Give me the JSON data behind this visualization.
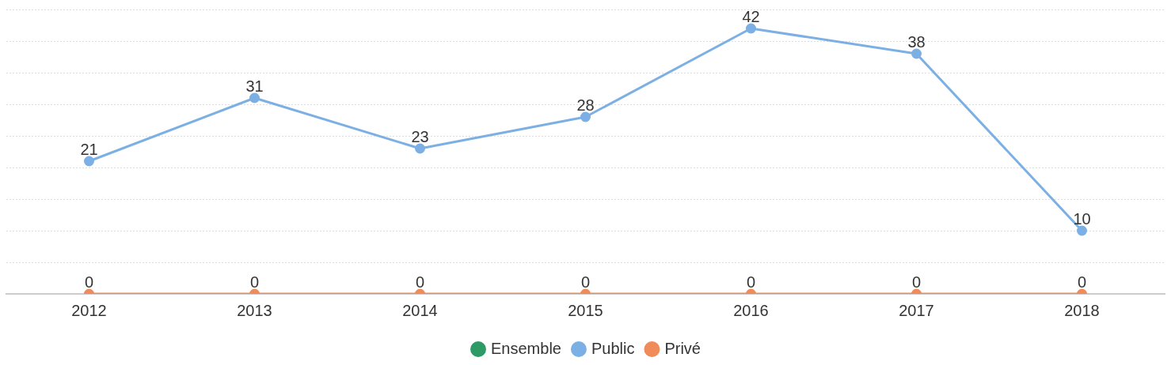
{
  "chart_data": {
    "type": "line",
    "categories": [
      "2012",
      "2013",
      "2014",
      "2015",
      "2016",
      "2017",
      "2018"
    ],
    "series": [
      {
        "name": "Ensemble",
        "color": "#2e9a66",
        "values": [
          null,
          null,
          null,
          null,
          null,
          null,
          null
        ]
      },
      {
        "name": "Public",
        "color": "#7cb0e4",
        "values": [
          21,
          31,
          23,
          28,
          42,
          38,
          10
        ]
      },
      {
        "name": "Privé",
        "color": "#f08c5a",
        "values": [
          0,
          0,
          0,
          0,
          0,
          0,
          0
        ]
      }
    ],
    "ylim": [
      0,
      45
    ],
    "yticks": [
      {
        "value": 0,
        "label": null
      },
      {
        "value": 5,
        "label": null
      },
      {
        "value": 10,
        "label": null
      },
      {
        "value": 15,
        "label": null
      },
      {
        "value": 20,
        "label": null
      },
      {
        "value": 25,
        "label": null
      },
      {
        "value": 30,
        "label": null
      },
      {
        "value": 35,
        "label": null
      },
      {
        "value": 40,
        "label": null
      },
      {
        "value": 45,
        "label": null
      }
    ],
    "grid": "y",
    "legend": "bottom",
    "tick_labels": "x",
    "marker": "circle",
    "line_style": "solid",
    "data_labels": true
  }
}
